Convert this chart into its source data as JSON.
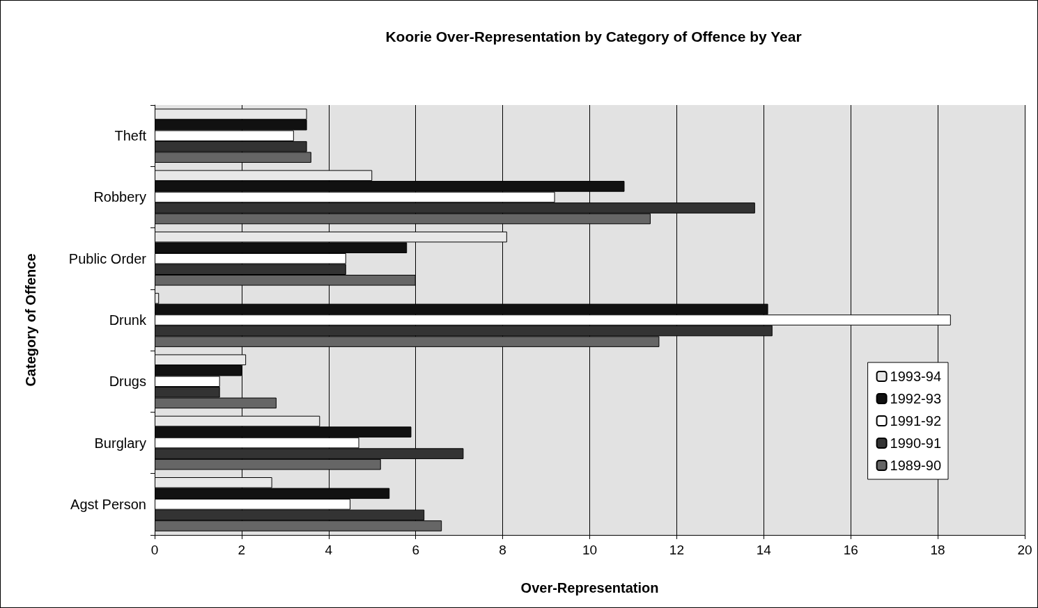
{
  "chart_data": {
    "type": "bar",
    "orientation": "horizontal",
    "title": "Koorie Over-Representation by Category of Offence by Year",
    "xlabel": "Over-Representation",
    "ylabel": "Category of Offence",
    "categories": [
      "Theft",
      "Robbery",
      "Public Order",
      "Drunk",
      "Drugs",
      "Burglary",
      "Agst Person"
    ],
    "series": [
      {
        "name": "1993-94",
        "color": "#e8e8e8",
        "values": [
          3.5,
          5.0,
          8.1,
          0.1,
          2.1,
          3.8,
          2.7
        ]
      },
      {
        "name": "1992-93",
        "color": "#111111",
        "values": [
          3.5,
          10.8,
          5.8,
          14.1,
          2.0,
          5.9,
          5.4
        ]
      },
      {
        "name": "1991-92",
        "color": "#ffffff",
        "values": [
          3.2,
          9.2,
          4.4,
          18.3,
          1.5,
          4.7,
          4.5
        ]
      },
      {
        "name": "1990-91",
        "color": "#333333",
        "values": [
          3.5,
          13.8,
          4.4,
          14.2,
          1.5,
          7.1,
          6.2
        ]
      },
      {
        "name": "1989-90",
        "color": "#666666",
        "values": [
          3.6,
          11.4,
          6.0,
          11.6,
          2.8,
          5.2,
          6.6
        ]
      }
    ],
    "xlim": [
      0,
      20
    ],
    "xticks": [
      0,
      2,
      4,
      6,
      8,
      10,
      12,
      14,
      16,
      18,
      20
    ],
    "grid": "x",
    "legend": "right"
  }
}
